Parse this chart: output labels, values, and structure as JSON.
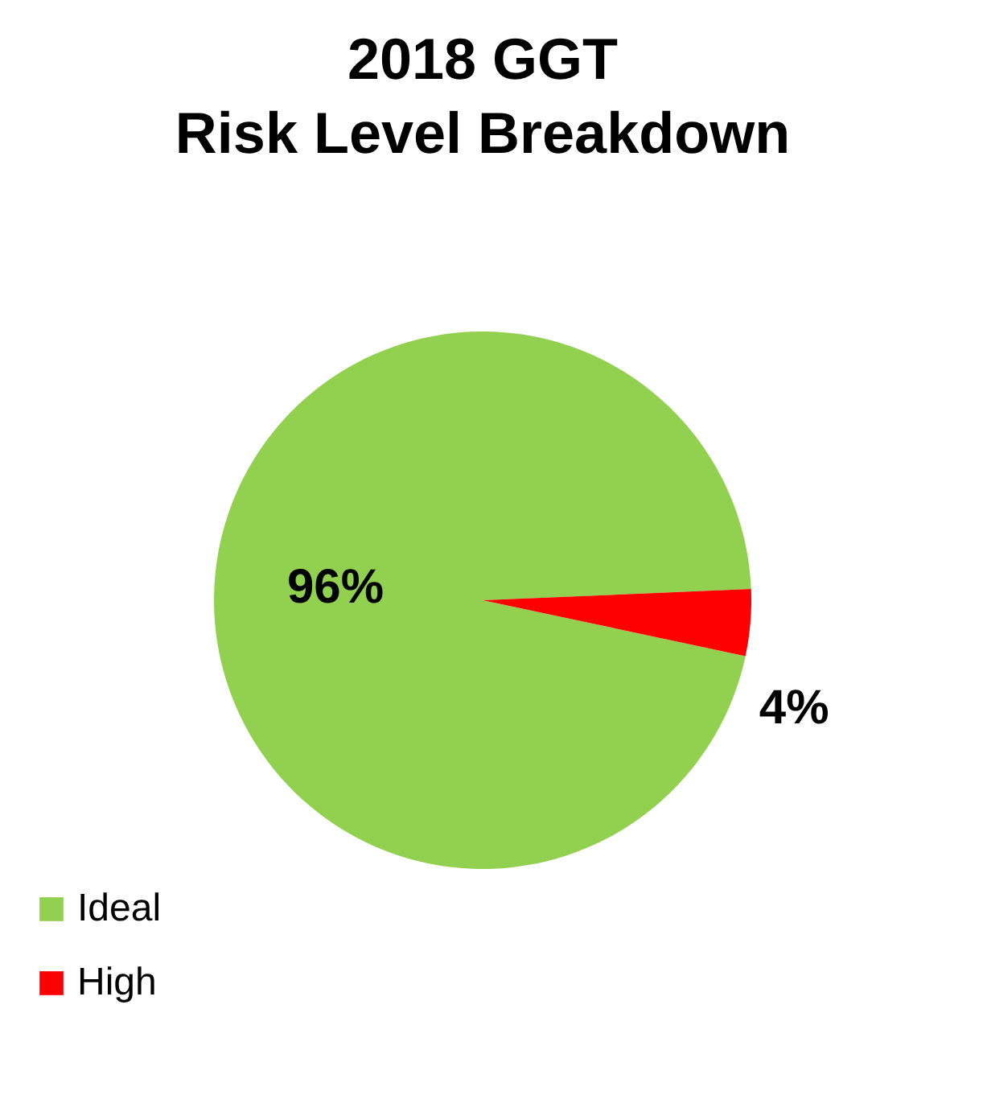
{
  "chart_data": {
    "type": "pie",
    "title": [
      "2018 GGT",
      "Risk Level Breakdown"
    ],
    "categories": [
      "Ideal",
      "High"
    ],
    "values": [
      96,
      4
    ],
    "colors": [
      "#92d050",
      "#ff0000"
    ],
    "value_labels": [
      "96%",
      "4%"
    ],
    "legend": "bottom left"
  }
}
